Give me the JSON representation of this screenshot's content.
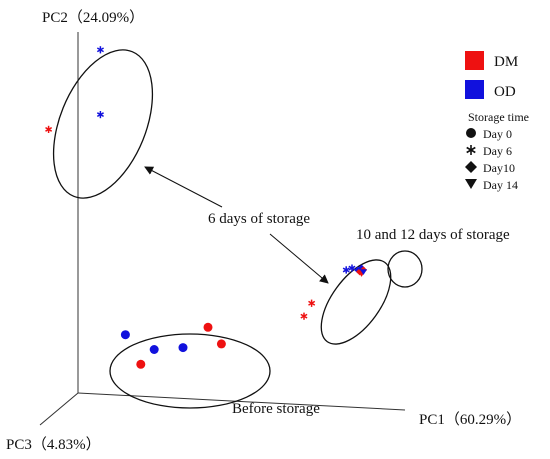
{
  "chart_data": {
    "type": "scatter",
    "dimensions": 3,
    "axes": {
      "pc1": "PC1（60.29%）",
      "pc2": "PC2（24.09%）",
      "pc3": "PC3（4.83%）"
    },
    "legend": {
      "placement": "top-right",
      "groups": [
        {
          "name": "DM",
          "color": "#ee1111"
        },
        {
          "name": "OD",
          "color": "#1111dd"
        }
      ],
      "storage_title": "Storage time",
      "markers": [
        {
          "label": "Day 0",
          "shape": "circle"
        },
        {
          "label": "Day 6",
          "shape": "asterisk"
        },
        {
          "label": "Day10",
          "shape": "diamond"
        },
        {
          "label": "Day 14",
          "shape": "triangle"
        }
      ]
    },
    "annotations": {
      "six_days": "6 days of storage",
      "ten_twelve": "10 and 12 days of storage",
      "before": "Before storage"
    },
    "points": [
      {
        "group": "OD",
        "day": "Day 0",
        "pc1": -0.55,
        "pc2": -0.62
      },
      {
        "group": "OD",
        "day": "Day 0",
        "pc1": -0.4,
        "pc2": -0.7
      },
      {
        "group": "OD",
        "day": "Day 0",
        "pc1": -0.25,
        "pc2": -0.69
      },
      {
        "group": "DM",
        "day": "Day 0",
        "pc1": -0.12,
        "pc2": -0.58
      },
      {
        "group": "DM",
        "day": "Day 0",
        "pc1": -0.05,
        "pc2": -0.67
      },
      {
        "group": "DM",
        "day": "Day 0",
        "pc1": -0.47,
        "pc2": -0.78
      },
      {
        "group": "OD",
        "day": "Day 6",
        "pc1": -0.68,
        "pc2": 0.92
      },
      {
        "group": "OD",
        "day": "Day 6",
        "pc1": -0.68,
        "pc2": 0.57
      },
      {
        "group": "DM",
        "day": "Day 6",
        "pc1": -0.95,
        "pc2": 0.49
      },
      {
        "group": "DM",
        "day": "Day 6",
        "pc1": 0.42,
        "pc2": -0.45
      },
      {
        "group": "DM",
        "day": "Day 6",
        "pc1": 0.38,
        "pc2": -0.52
      },
      {
        "group": "OD",
        "day": "Day 6",
        "pc1": 0.6,
        "pc2": -0.27
      },
      {
        "group": "OD",
        "day": "Day 6",
        "pc1": 0.63,
        "pc2": -0.26
      },
      {
        "group": "OD",
        "day": "Day10",
        "pc1": 0.66,
        "pc2": -0.27
      },
      {
        "group": "DM",
        "day": "Day10",
        "pc1": 0.67,
        "pc2": -0.28
      },
      {
        "group": "OD",
        "day": "Day10",
        "pc1": 0.68,
        "pc2": -0.26
      },
      {
        "group": "DM",
        "day": "Day10",
        "pc1": 0.69,
        "pc2": -0.27
      },
      {
        "group": "DM",
        "day": "Day 14",
        "pc1": 0.68,
        "pc2": -0.29
      },
      {
        "group": "OD",
        "day": "Day 14",
        "pc1": 0.69,
        "pc2": -0.28
      }
    ]
  }
}
